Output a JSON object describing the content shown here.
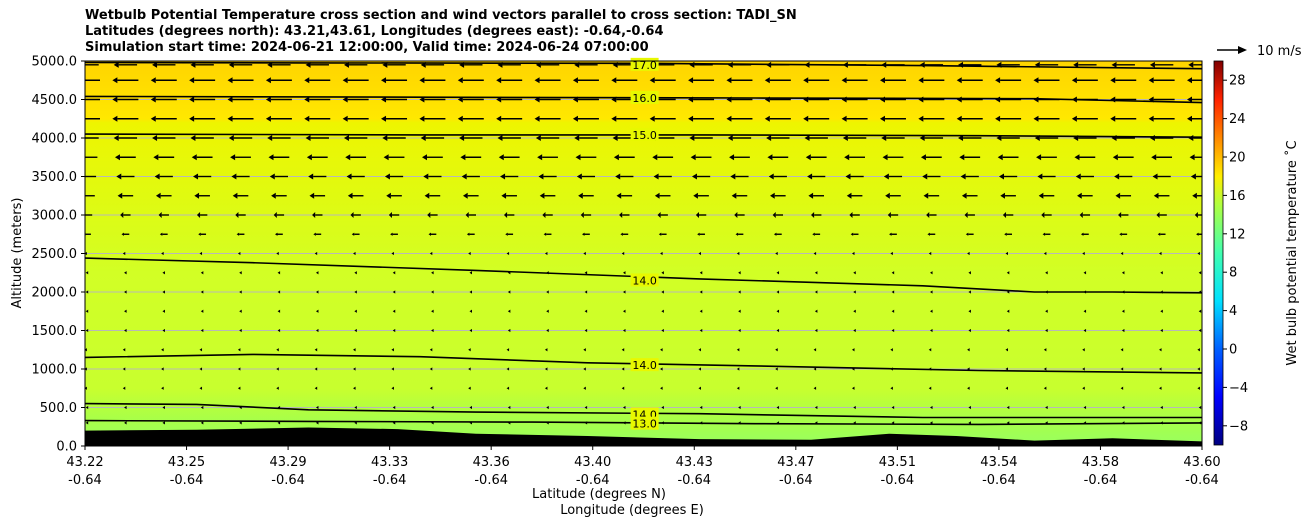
{
  "chart_data": {
    "type": "heatmap",
    "title_lines": [
      "Wetbulb Potential Temperature cross section and wind vectors parallel to cross section: TADI_SN",
      "Latitudes (degrees north): 43.21,43.61, Longitudes (degrees east): -0.64,-0.64",
      "Simulation start time: 2024-06-21 12:00:00, Valid time: 2024-06-24 07:00:00"
    ],
    "xlabel_lines": [
      "Latitude (degrees N)",
      "Longitude (degrees E)"
    ],
    "ylabel": "Altitude (meters)",
    "x_ticks": [
      {
        "lat": "43.22",
        "lon": "-0.64"
      },
      {
        "lat": "43.25",
        "lon": "-0.64"
      },
      {
        "lat": "43.29",
        "lon": "-0.64"
      },
      {
        "lat": "43.33",
        "lon": "-0.64"
      },
      {
        "lat": "43.36",
        "lon": "-0.64"
      },
      {
        "lat": "43.40",
        "lon": "-0.64"
      },
      {
        "lat": "43.43",
        "lon": "-0.64"
      },
      {
        "lat": "43.47",
        "lon": "-0.64"
      },
      {
        "lat": "43.51",
        "lon": "-0.64"
      },
      {
        "lat": "43.54",
        "lon": "-0.64"
      },
      {
        "lat": "43.58",
        "lon": "-0.64"
      },
      {
        "lat": "43.60",
        "lon": "-0.64"
      }
    ],
    "ylim": [
      0,
      5000
    ],
    "y_ticks": [
      "0.0",
      "500.0",
      "1000.0",
      "1500.0",
      "2000.0",
      "2500.0",
      "3000.0",
      "3500.0",
      "4000.0",
      "4500.0",
      "5000.0"
    ],
    "grid": "horizontal",
    "colorbar": {
      "label": "Wet bulb potential temperature ˚C",
      "range": [
        -10,
        30
      ],
      "ticks": [
        "−8",
        "−4",
        "0",
        "4",
        "8",
        "12",
        "16",
        "20",
        "24",
        "28"
      ],
      "colormap": "jet"
    },
    "wind_key_label": "10 m/s",
    "contour_labels": [
      {
        "text": "17.0",
        "altitude": 4950
      },
      {
        "text": "16.0",
        "altitude": 4520
      },
      {
        "text": "15.0",
        "altitude": 4040
      },
      {
        "text": "14.0",
        "altitude": 2150
      },
      {
        "text": "14.0",
        "altitude": 1050
      },
      {
        "text": "14.0",
        "altitude": 410
      },
      {
        "text": "13.0",
        "altitude": 290
      }
    ],
    "contours": [
      {
        "value": 17.0,
        "points": [
          [
            0,
            4980
          ],
          [
            0.2,
            4975
          ],
          [
            0.5,
            4970
          ],
          [
            0.75,
            4940
          ],
          [
            1,
            4900
          ]
        ]
      },
      {
        "value": 16.0,
        "points": [
          [
            0,
            4540
          ],
          [
            0.3,
            4530
          ],
          [
            0.6,
            4520
          ],
          [
            0.85,
            4510
          ],
          [
            1,
            4460
          ]
        ]
      },
      {
        "value": 15.0,
        "points": [
          [
            0,
            4050
          ],
          [
            0.3,
            4040
          ],
          [
            0.55,
            4040
          ],
          [
            0.8,
            4030
          ],
          [
            1,
            4010
          ]
        ]
      },
      {
        "value": 14.0,
        "points": [
          [
            0,
            2440
          ],
          [
            0.15,
            2380
          ],
          [
            0.35,
            2280
          ],
          [
            0.55,
            2170
          ],
          [
            0.75,
            2080
          ],
          [
            0.85,
            2000
          ],
          [
            0.92,
            2000
          ],
          [
            1,
            1990
          ]
        ]
      },
      {
        "value": 14.0,
        "points": [
          [
            0,
            1150
          ],
          [
            0.15,
            1190
          ],
          [
            0.3,
            1160
          ],
          [
            0.45,
            1080
          ],
          [
            0.6,
            1040
          ],
          [
            0.8,
            980
          ],
          [
            1,
            950
          ]
        ]
      },
      {
        "value": 14.0,
        "points": [
          [
            0,
            550
          ],
          [
            0.1,
            540
          ],
          [
            0.2,
            470
          ],
          [
            0.35,
            440
          ],
          [
            0.55,
            420
          ],
          [
            0.75,
            370
          ],
          [
            1,
            370
          ]
        ]
      },
      {
        "value": 13.0,
        "points": [
          [
            0,
            330
          ],
          [
            0.2,
            320
          ],
          [
            0.4,
            310
          ],
          [
            0.6,
            290
          ],
          [
            0.8,
            280
          ],
          [
            1,
            300
          ]
        ]
      }
    ],
    "terrain": [
      [
        0,
        200
      ],
      [
        0.1,
        210
      ],
      [
        0.2,
        240
      ],
      [
        0.28,
        220
      ],
      [
        0.35,
        160
      ],
      [
        0.45,
        130
      ],
      [
        0.55,
        90
      ],
      [
        0.65,
        80
      ],
      [
        0.72,
        160
      ],
      [
        0.78,
        130
      ],
      [
        0.85,
        70
      ],
      [
        0.92,
        100
      ],
      [
        1,
        60
      ]
    ],
    "wind_rows": [
      {
        "altitude": 4950,
        "u": -9
      },
      {
        "altitude": 4750,
        "u": -10
      },
      {
        "altitude": 4500,
        "u": -10
      },
      {
        "altitude": 4250,
        "u": -10
      },
      {
        "altitude": 4000,
        "u": -9
      },
      {
        "altitude": 3750,
        "u": -8
      },
      {
        "altitude": 3500,
        "u": -7
      },
      {
        "altitude": 3250,
        "u": -6
      },
      {
        "altitude": 3000,
        "u": -4
      },
      {
        "altitude": 2750,
        "u": -3
      },
      {
        "altitude": 2500,
        "u": -2
      },
      {
        "altitude": 2250,
        "u": -1
      },
      {
        "altitude": 2000,
        "u": -1
      },
      {
        "altitude": 1750,
        "u": -1
      },
      {
        "altitude": 1500,
        "u": -1
      },
      {
        "altitude": 1250,
        "u": -2
      },
      {
        "altitude": 1000,
        "u": -2
      },
      {
        "altitude": 750,
        "u": -2
      },
      {
        "altitude": 500,
        "u": -1
      },
      {
        "altitude": 300,
        "u": -1
      }
    ]
  }
}
